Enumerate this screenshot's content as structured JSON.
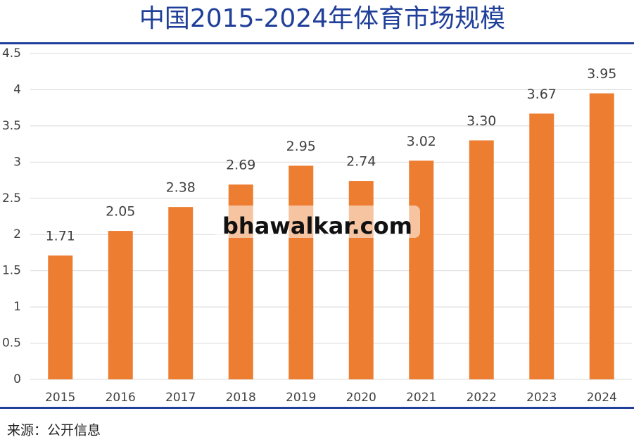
{
  "chart_data": {
    "type": "bar",
    "title": "中国2015-2024年体育市场规模",
    "categories": [
      "2015",
      "2016",
      "2017",
      "2018",
      "2019",
      "2020",
      "2021",
      "2022",
      "2023",
      "2024"
    ],
    "values": [
      1.71,
      2.05,
      2.38,
      2.69,
      2.95,
      2.74,
      3.02,
      3.3,
      3.67,
      3.95
    ],
    "value_labels": [
      "1.71",
      "2.05",
      "2.38",
      "2.69",
      "2.95",
      "2.74",
      "3.02",
      "3.30",
      "3.67",
      "3.95"
    ],
    "color": "#ed7d31",
    "ylim": [
      0,
      4.5
    ],
    "yticks": [
      0,
      0.5,
      1,
      1.5,
      2,
      2.5,
      3,
      3.5,
      4,
      4.5
    ],
    "grid": true,
    "source": "来源：公开信息",
    "watermark": "bhawalkar.com"
  }
}
